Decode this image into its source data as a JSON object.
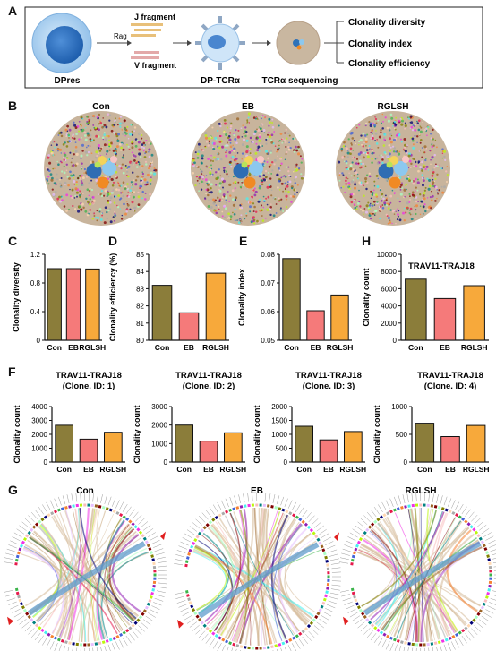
{
  "panels": {
    "a": "A",
    "b": "B",
    "c": "C",
    "d": "D",
    "e": "E",
    "h": "H",
    "f": "F",
    "g": "G"
  },
  "schematic": {
    "dpres": "DPres",
    "rag": "Rag",
    "j_fragment": "J fragment",
    "v_fragment": "V fragment",
    "dp_tcra": "DP-TCRα",
    "tcra_seq": "TCRα sequencing",
    "outcomes": [
      "Clonality diversity",
      "Clonality index",
      "Clonality efficiency"
    ]
  },
  "groups": [
    "Con",
    "EB",
    "RGLSH"
  ],
  "colors": {
    "Con": "#8b7d3a",
    "EB": "#f57a7a",
    "RGLSH": "#f7a93b"
  },
  "chart_data": [
    {
      "type": "bar",
      "id": "C",
      "title": "",
      "ylabel": "Clonality diversity",
      "categories": [
        "Con",
        "EB",
        "RGLSH"
      ],
      "values": [
        1.0,
        1.0,
        0.995
      ],
      "ylim": [
        0,
        1.2
      ],
      "yticks": [
        "0",
        "0.4",
        "0.8",
        "1.2"
      ],
      "tickvals": [
        0,
        0.4,
        0.8,
        1.2
      ]
    },
    {
      "type": "bar",
      "id": "D",
      "title": "",
      "ylabel": "Clonality efficiency (%)",
      "categories": [
        "Con",
        "EB",
        "RGLSH"
      ],
      "values": [
        83.2,
        81.6,
        83.9
      ],
      "ylim": [
        80,
        85
      ],
      "yticks": [
        "80",
        "81",
        "82",
        "83",
        "84",
        "85"
      ],
      "tickvals": [
        80,
        81,
        82,
        83,
        84,
        85
      ]
    },
    {
      "type": "bar",
      "id": "E",
      "title": "",
      "ylabel": "Clonality index",
      "categories": [
        "Con",
        "EB",
        "RGLSH"
      ],
      "values": [
        0.0785,
        0.0603,
        0.0658
      ],
      "ylim": [
        0.05,
        0.08
      ],
      "yticks": [
        "0.05",
        "0.06",
        "0.07",
        "0.08"
      ],
      "tickvals": [
        0.05,
        0.06,
        0.07,
        0.08
      ]
    },
    {
      "type": "bar",
      "id": "H",
      "title": "TRAV11-TRAJ18",
      "ylabel": "Clonality count",
      "categories": [
        "Con",
        "EB",
        "RGLSH"
      ],
      "values": [
        7100,
        4850,
        6350
      ],
      "ylim": [
        0,
        10000
      ],
      "yticks": [
        "0",
        "2000",
        "4000",
        "6000",
        "8000",
        "10000"
      ],
      "tickvals": [
        0,
        2000,
        4000,
        6000,
        8000,
        10000
      ]
    },
    {
      "type": "bar",
      "id": "F1",
      "title": "TRAV11-TRAJ18\n(Clone. ID: 1)",
      "ylabel": "Clonality count",
      "categories": [
        "Con",
        "EB",
        "RGLSH"
      ],
      "values": [
        2650,
        1650,
        2150
      ],
      "ylim": [
        0,
        4000
      ],
      "yticks": [
        "0",
        "1000",
        "2000",
        "3000",
        "4000"
      ],
      "tickvals": [
        0,
        1000,
        2000,
        3000,
        4000
      ]
    },
    {
      "type": "bar",
      "id": "F2",
      "title": "TRAV11-TRAJ18\n(Clone. ID: 2)",
      "ylabel": "Clonality count",
      "categories": [
        "Con",
        "EB",
        "RGLSH"
      ],
      "values": [
        2000,
        1130,
        1580
      ],
      "ylim": [
        0,
        3000
      ],
      "yticks": [
        "0",
        "1000",
        "2000",
        "3000"
      ],
      "tickvals": [
        0,
        1000,
        2000,
        3000
      ]
    },
    {
      "type": "bar",
      "id": "F3",
      "title": "TRAV11-TRAJ18\n(Clone. ID: 3)",
      "ylabel": "Clonality count",
      "categories": [
        "Con",
        "EB",
        "RGLSH"
      ],
      "values": [
        1290,
        800,
        1100
      ],
      "ylim": [
        0,
        2000
      ],
      "yticks": [
        "0",
        "500",
        "1000",
        "1500",
        "2000"
      ],
      "tickvals": [
        0,
        500,
        1000,
        1500,
        2000
      ]
    },
    {
      "type": "bar",
      "id": "F4",
      "title": "TRAV11-TRAJ18\n(Clone. ID: 4)",
      "ylabel": "Clonality count",
      "categories": [
        "Con",
        "EB",
        "RGLSH"
      ],
      "values": [
        700,
        460,
        660
      ],
      "ylim": [
        0,
        1000
      ],
      "yticks": [
        "0",
        "500",
        "1000"
      ],
      "tickvals": [
        0,
        500,
        1000
      ]
    }
  ]
}
